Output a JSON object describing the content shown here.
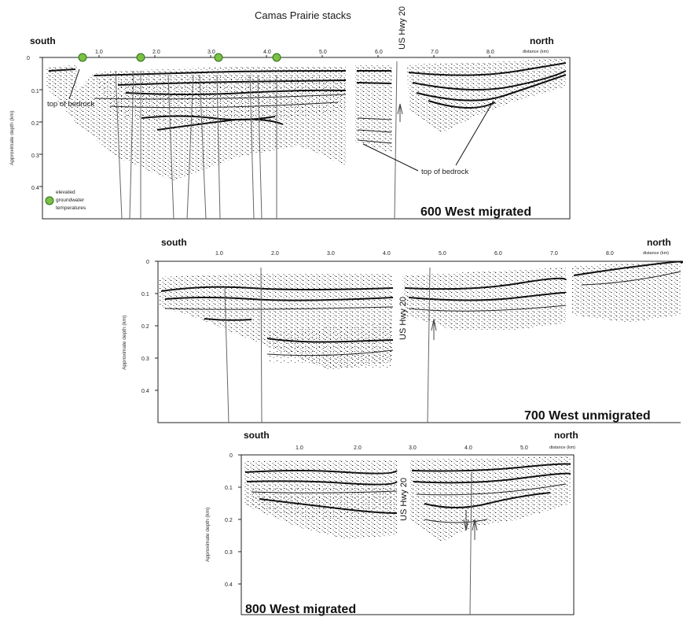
{
  "title": "Camas Prairie stacks",
  "colors": {
    "marker": "#7ac143",
    "marker_stroke": "#2e6b1c",
    "ink": "#111111",
    "fault": "#555555"
  },
  "legend": {
    "lines": [
      "elevated",
      "groundwater",
      "temperatures"
    ]
  },
  "panels": [
    {
      "id": "p600",
      "name": "600 West migrated",
      "south": "south",
      "north": "north",
      "distance_label": "distance (km)",
      "ylabel": "Approximate depth (km)",
      "x_ticks": [
        "1.0",
        "2.0",
        "3.0",
        "4.0",
        "5.0",
        "6.0",
        "7.0",
        "8.0"
      ],
      "y_ticks": [
        "0",
        "0.1",
        "0.2",
        "0.3",
        "0.4"
      ],
      "hwy_label": "US Hwy 20",
      "annotations": [
        "top of bedrock",
        "top of bedrock"
      ]
    },
    {
      "id": "p700",
      "name": "700 West unmigrated",
      "south": "south",
      "north": "north",
      "distance_label": "distance (km)",
      "ylabel": "Approximate depth (km)",
      "x_ticks": [
        "1.0",
        "2.0",
        "3.0",
        "4.0",
        "5.0",
        "6.0",
        "7.0",
        "8.0"
      ],
      "y_ticks": [
        "0",
        "0.1",
        "0.2",
        "0.3",
        "0.4"
      ],
      "hwy_label": "US Hwy 20"
    },
    {
      "id": "p800",
      "name": "800 West migrated",
      "south": "south",
      "north": "north",
      "distance_label": "distance (km)",
      "ylabel": "Approximate depth (km)",
      "x_ticks": [
        "1.0",
        "2.0",
        "3.0",
        "4.0",
        "5.0"
      ],
      "y_ticks": [
        "0",
        "0.1",
        "0.2",
        "0.3",
        "0.4"
      ],
      "hwy_label": "US Hwy 20"
    }
  ]
}
